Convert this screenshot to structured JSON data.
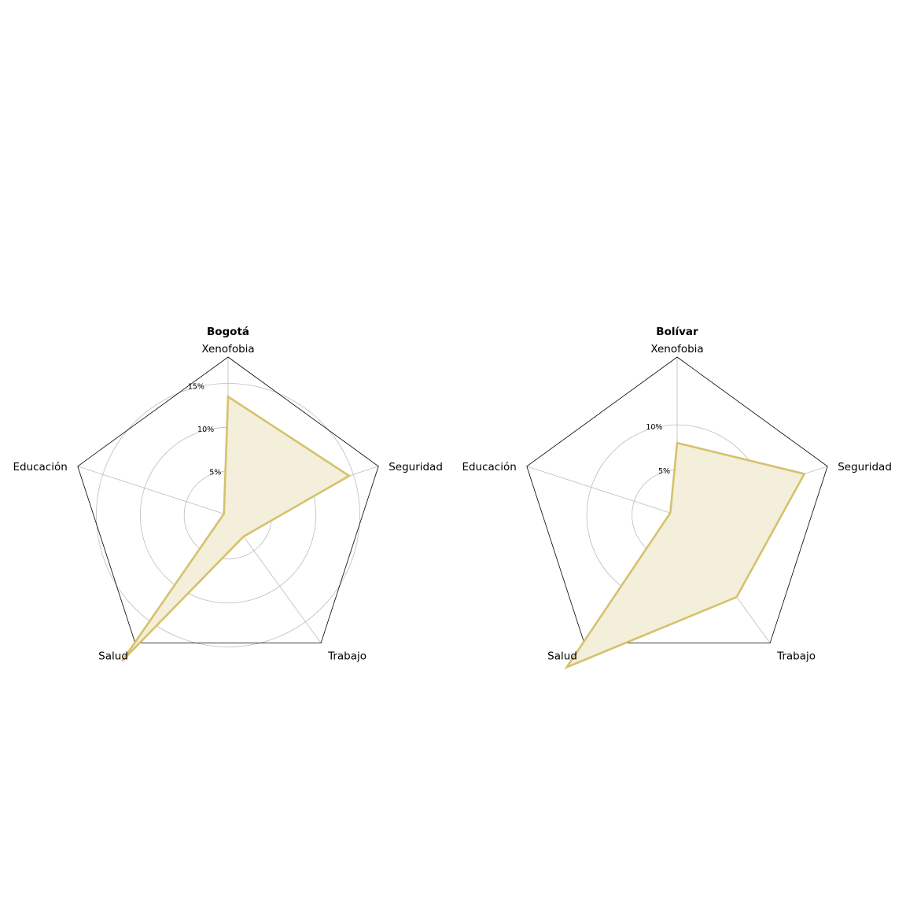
{
  "chart_data": [
    {
      "type": "radar",
      "title": "Bogotá",
      "categories": [
        "Xenofobia",
        "Seguridad",
        "Trabajo",
        "Salud",
        "Educación"
      ],
      "series": [
        {
          "values": [
            13.5,
            14.5,
            3.0,
            20.5,
            0.5
          ]
        }
      ],
      "rlim": [
        0,
        18
      ],
      "rticks": [
        5,
        10,
        15
      ],
      "rtick_labels": [
        "5%",
        "10%",
        "15%"
      ],
      "color": "#d6c16c",
      "fill": "#f3efda",
      "grid": true
    },
    {
      "type": "radar",
      "title": "Bolívar",
      "categories": [
        "Xenofobia",
        "Seguridad",
        "Trabajo",
        "Salud",
        "Educación"
      ],
      "series": [
        {
          "values": [
            8.0,
            14.8,
            11.2,
            20.8,
            0.8
          ]
        }
      ],
      "rlim": [
        0,
        17.5
      ],
      "rticks": [
        5,
        10
      ],
      "rtick_labels": [
        "5%",
        "10%"
      ],
      "color": "#d6c16c",
      "fill": "#f3efda",
      "grid": true
    }
  ]
}
